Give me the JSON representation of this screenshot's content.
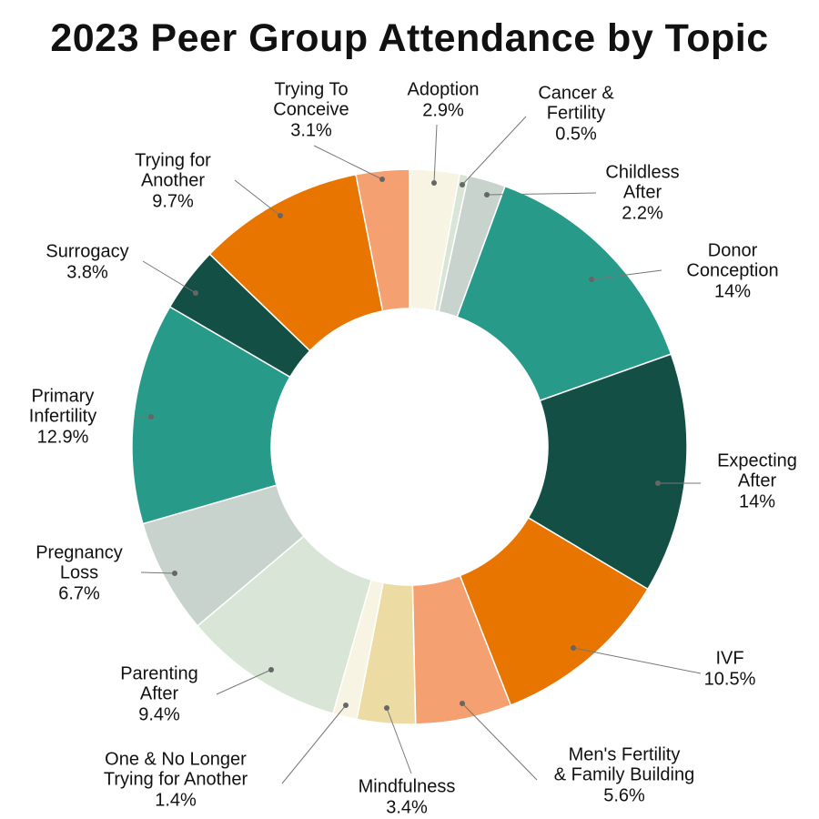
{
  "chart_data": {
    "type": "pie",
    "donut": true,
    "title": "2023 Peer Group Attendance by Topic",
    "slices": [
      {
        "label": "Adoption",
        "value": 2.9,
        "display": "2.9%",
        "color": "#f7f4e3"
      },
      {
        "label": "Cancer & Fertility",
        "value": 0.5,
        "display": "0.5%",
        "color": "#d9e5d6"
      },
      {
        "label": "Childless After",
        "value": 2.2,
        "display": "2.2%",
        "color": "#c9d3cd"
      },
      {
        "label": "Donor Conception",
        "value": 14,
        "display": "14%",
        "color": "#279a89"
      },
      {
        "label": "Expecting After",
        "value": 14,
        "display": "14%",
        "color": "#134f45"
      },
      {
        "label": "IVF",
        "value": 10.5,
        "display": "10.5%",
        "color": "#e87500"
      },
      {
        "label": "Men's Fertility & Family Building",
        "value": 5.6,
        "display": "5.6%",
        "color": "#f4a070"
      },
      {
        "label": "Mindfulness",
        "value": 3.4,
        "display": "3.4%",
        "color": "#ecdba3"
      },
      {
        "label": "One & No Longer Trying for Another",
        "value": 1.4,
        "display": "1.4%",
        "color": "#f7f4e3"
      },
      {
        "label": "Parenting After",
        "value": 9.4,
        "display": "9.4%",
        "color": "#d9e5d6"
      },
      {
        "label": "Pregnancy Loss",
        "value": 6.7,
        "display": "6.7%",
        "color": "#c9d3cd"
      },
      {
        "label": "Primary Infertility",
        "value": 12.9,
        "display": "12.9%",
        "color": "#279a89"
      },
      {
        "label": "Surrogacy",
        "value": 3.8,
        "display": "3.8%",
        "color": "#134f45"
      },
      {
        "label": "Trying for Another",
        "value": 9.7,
        "display": "9.7%",
        "color": "#e87500"
      },
      {
        "label": "Trying To Conceive",
        "value": 3.1,
        "display": "3.1%",
        "color": "#f4a070"
      }
    ],
    "label_lines": [
      [
        "Adoption"
      ],
      [
        "Cancer &",
        "Fertility"
      ],
      [
        "Childless",
        "After"
      ],
      [
        "Donor",
        "Conception"
      ],
      [
        "Expecting",
        "After"
      ],
      [
        "IVF"
      ],
      [
        "Men's Fertility",
        "& Family Building"
      ],
      [
        "Mindfulness"
      ],
      [
        "One & No Longer",
        "Trying for Another"
      ],
      [
        "Parenting",
        "After"
      ],
      [
        "Pregnancy",
        "Loss"
      ],
      [
        "Primary",
        "Infertility"
      ],
      [
        "Surrogacy"
      ],
      [
        "Trying for",
        "Another"
      ],
      [
        "Trying To",
        "Conceive"
      ]
    ],
    "legend": "none"
  }
}
